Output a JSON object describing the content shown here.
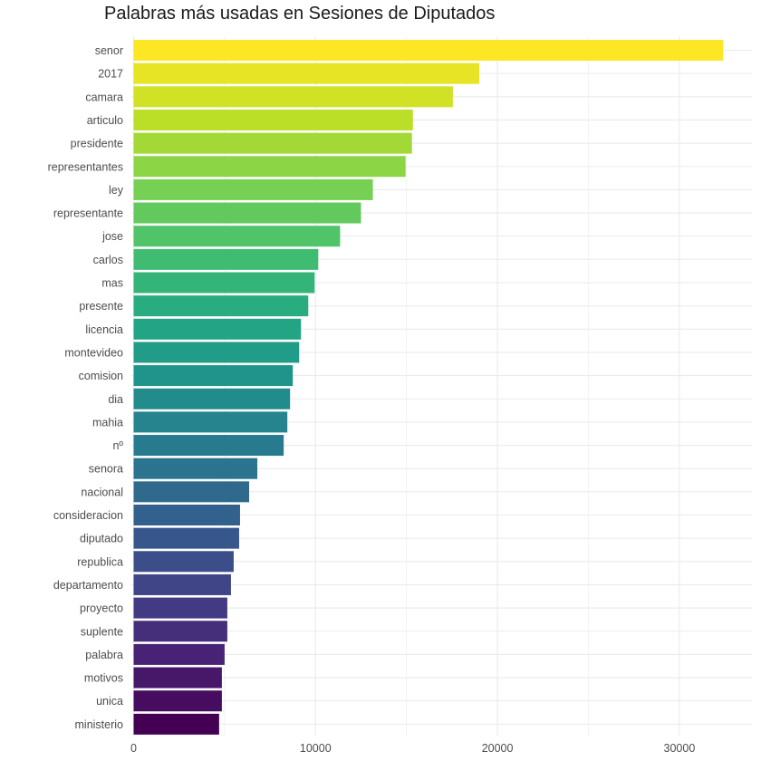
{
  "chart_data": {
    "type": "bar",
    "orientation": "horizontal",
    "title": "Palabras más usadas en Sesiones de Diputados",
    "xlabel": "",
    "ylabel": "",
    "xlim": [
      0,
      34000
    ],
    "x_ticks": [
      0,
      10000,
      20000,
      30000
    ],
    "x_tick_labels": [
      "0",
      "10000",
      "20000",
      "30000"
    ],
    "grid": true,
    "legend": "none",
    "color_scale": "viridis",
    "categories": [
      "senor",
      "2017",
      "camara",
      "articulo",
      "presidente",
      "representantes",
      "ley",
      "representante",
      "jose",
      "carlos",
      "mas",
      "presente",
      "licencia",
      "montevideo",
      "comision",
      "dia",
      "mahia",
      "nº",
      "senora",
      "nacional",
      "consideracion",
      "diputado",
      "republica",
      "departamento",
      "proyecto",
      "suplente",
      "palabra",
      "motivos",
      "unica",
      "ministerio"
    ],
    "values": [
      32400,
      19000,
      17550,
      15350,
      15300,
      14950,
      13150,
      12500,
      11350,
      10150,
      9950,
      9600,
      9200,
      9100,
      8750,
      8600,
      8450,
      8250,
      6800,
      6350,
      5850,
      5800,
      5500,
      5350,
      5150,
      5150,
      5000,
      4850,
      4850,
      4700
    ]
  }
}
